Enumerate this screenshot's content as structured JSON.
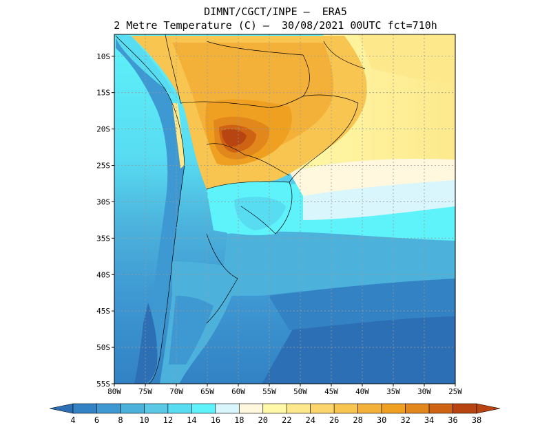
{
  "header": {
    "line1": "DIMNT/CGCT/INPE –  ERA5",
    "line2": "2 Metre Temperature (C) –  30/08/2021 00UTC fct=710h"
  },
  "map": {
    "region": "South America",
    "lat_ticks": [
      "10S",
      "15S",
      "20S",
      "25S",
      "30S",
      "35S",
      "40S",
      "45S",
      "50S",
      "55S"
    ],
    "lon_ticks": [
      "80W",
      "75W",
      "70W",
      "65W",
      "60W",
      "55W",
      "50W",
      "45W",
      "40W",
      "35W",
      "30W",
      "25W"
    ],
    "lat_range": [
      -55,
      -7
    ],
    "lon_range": [
      -80,
      -25
    ]
  },
  "colorbar": {
    "levels": [
      "4",
      "6",
      "8",
      "10",
      "12",
      "14",
      "16",
      "18",
      "20",
      "22",
      "24",
      "26",
      "28",
      "30",
      "32",
      "34",
      "36",
      "38"
    ],
    "colors": [
      "#2c6fb4",
      "#3282c4",
      "#3e98d2",
      "#4cb2dc",
      "#5bc9e6",
      "#58dcf2",
      "#5ef2fa",
      "#d8f6fb",
      "#fff7de",
      "#fff8a8",
      "#fde98c",
      "#fcd66c",
      "#f8c550",
      "#f4b13a",
      "#efa020",
      "#e2871c",
      "#cf6314",
      "#b84412"
    ]
  },
  "colors": {
    "cold": "#2c6fb4",
    "cool": "#5bc9e6",
    "mild": "#fff7de",
    "warm": "#f4b13a",
    "hot": "#cf6314"
  }
}
